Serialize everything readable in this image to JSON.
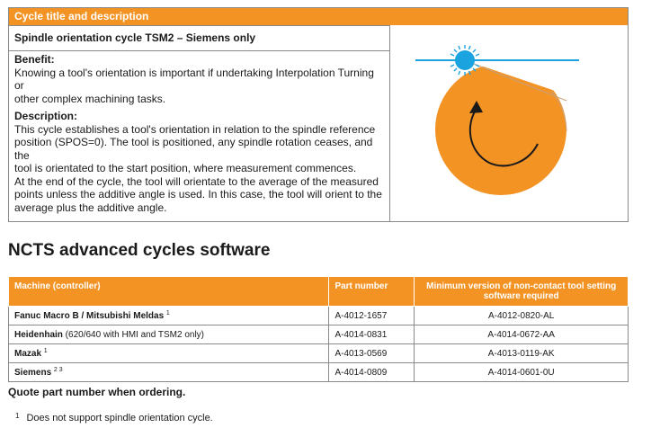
{
  "card": {
    "header": "Cycle title and description",
    "subtitle": "Spindle orientation cycle TSM2 – Siemens only",
    "benefit_heading": "Benefit:",
    "benefit_lines": [
      "Knowing a tool's orientation is important if undertaking Interpolation Turning or",
      "other complex machining tasks."
    ],
    "description_heading": "Description:",
    "description_lines": [
      "This cycle establishes a tool's orientation in relation to the spindle reference",
      "position (SPOS=0). The tool is positioned, any spindle rotation ceases, and the",
      "tool is orientated to the start position, where measurement commences.",
      "At the end of the cycle, the tool will orientate to the average of the measured",
      "points unless the additive angle is used. In this case, the tool will orient to the",
      "average plus the additive angle."
    ],
    "diagram": {
      "disc_color": "#f39324",
      "line_color": "#1aa3df",
      "sensor_color": "#1aa3df",
      "icon": "spindle-orientation-diagram"
    }
  },
  "section_title": "NCTS advanced cycles software",
  "table": {
    "headers": {
      "machine": "Machine (controller)",
      "part": "Part number",
      "min_version": "Minimum version of non-contact tool setting software required"
    },
    "rows": [
      {
        "machine": "Fanuc Macro B / Mitsubishi Meldas",
        "machine_note": "",
        "sup": "1",
        "part": "A-4012-1657",
        "version": "A-4012-0820-AL"
      },
      {
        "machine": "Heidenhain",
        "machine_note": " (620/640 with HMI and TSM2 only)",
        "sup": "",
        "part": "A-4014-0831",
        "version": "A-4014-0672-AA"
      },
      {
        "machine": "Mazak",
        "machine_note": "",
        "sup": "1",
        "part": "A-4013-0569",
        "version": "A-4013-0119-AK"
      },
      {
        "machine": "Siemens",
        "machine_note": "",
        "sup": "2 3",
        "part": "A-4014-0809",
        "version": "A-4014-0601-0U"
      }
    ],
    "header_color": "#f39324"
  },
  "quote_note": "Quote part number when ordering.",
  "footnote": {
    "number": "1",
    "text": "Does not support spindle orientation cycle."
  }
}
